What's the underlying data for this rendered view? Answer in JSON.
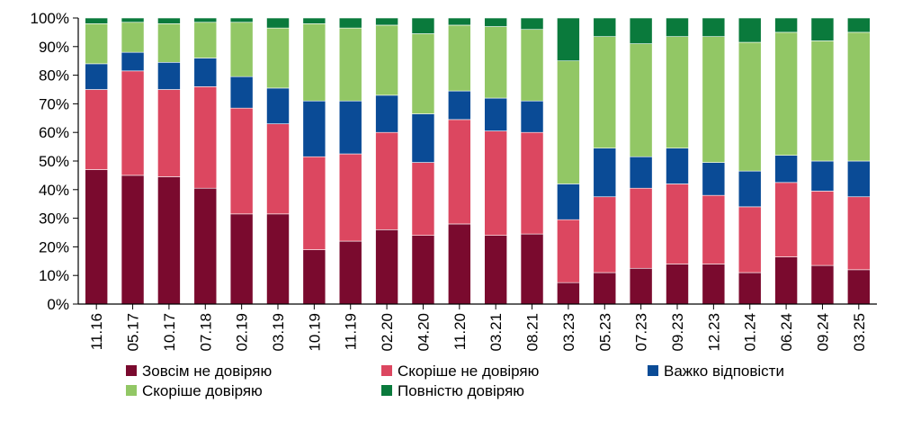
{
  "chart_data": {
    "type": "bar",
    "stacked": true,
    "title": "",
    "xlabel": "",
    "ylabel": "",
    "ylim": [
      0,
      100
    ],
    "y_ticks": [
      "0%",
      "10%",
      "20%",
      "30%",
      "40%",
      "50%",
      "60%",
      "70%",
      "80%",
      "90%",
      "100%"
    ],
    "grid": false,
    "legend_position": "bottom",
    "categories": [
      "11.16",
      "05.17",
      "10.17",
      "07.18",
      "02.19",
      "03.19",
      "10.19",
      "11.19",
      "02.20",
      "04.20",
      "11.20",
      "03.21",
      "08.21",
      "03.23",
      "05.23",
      "07.23",
      "09.23",
      "12.23",
      "01.24",
      "06.24",
      "09.24",
      "03.25"
    ],
    "series": [
      {
        "name": "Зовсім не довіряю",
        "color": "#7a0a2e",
        "values": [
          47,
          45,
          44.5,
          40.5,
          31.5,
          31.5,
          19,
          22,
          26,
          24,
          28,
          24,
          24.5,
          7.5,
          11,
          12.5,
          14,
          14,
          11,
          16.5,
          13.5,
          12
        ]
      },
      {
        "name": "Скоріше не довіряю",
        "color": "#dc4760",
        "values": [
          28,
          36.5,
          30.5,
          35.5,
          37,
          31.5,
          32.5,
          30.5,
          34,
          25.5,
          36.5,
          36.5,
          35.5,
          22,
          26.5,
          28,
          28,
          24,
          23,
          26,
          26,
          25.5
        ]
      },
      {
        "name": "Важко відповісти",
        "color": "#0a4b96",
        "values": [
          9,
          6.5,
          9.5,
          10,
          11,
          12.5,
          19.5,
          18.5,
          13,
          17,
          10,
          11.5,
          11,
          12.5,
          17,
          11,
          12.5,
          11.5,
          12.5,
          9.5,
          10.5,
          12.5
        ]
      },
      {
        "name": "Скоріше довіряю",
        "color": "#92c765",
        "values": [
          14,
          10.5,
          13.5,
          12.5,
          19,
          21,
          27,
          25.5,
          24.5,
          28,
          23,
          25,
          25,
          43,
          39,
          39.5,
          39,
          44,
          45,
          43,
          42,
          45
        ]
      },
      {
        "name": "Повністю довіряю",
        "color": "#0a7a3c",
        "values": [
          2,
          1.5,
          2,
          1.5,
          1.5,
          3.5,
          2,
          3.5,
          2.5,
          5.5,
          2.5,
          3,
          4,
          15,
          6.5,
          9,
          6.5,
          6.5,
          8.5,
          5,
          8,
          5
        ]
      }
    ]
  }
}
